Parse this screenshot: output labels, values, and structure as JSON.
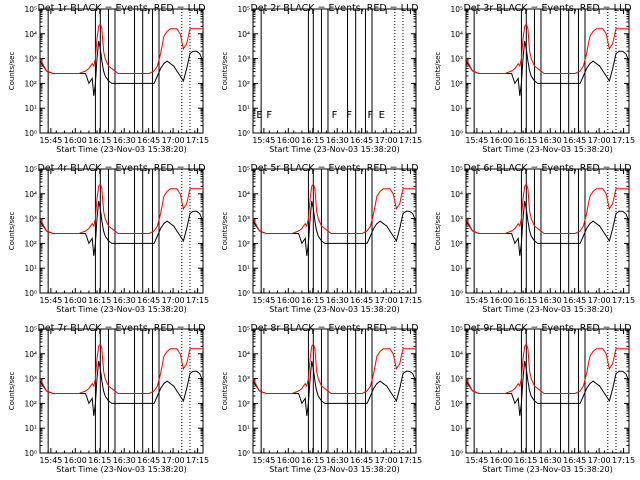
{
  "chart_data": {
    "type": "line",
    "figure": "detector count-rate grid, 3x3",
    "time_start_label": "Start Time (23-Nov-03 15:38:20)",
    "xlabel": "Start Time (23-Nov-03 15:38:20)",
    "ylabel": "Counts/sec",
    "xlim_minutes": [
      0,
      100
    ],
    "yscale": "log",
    "ylim_log10": [
      0,
      5
    ],
    "x_tick_minutes": [
      6.67,
      21.67,
      36.67,
      51.67,
      66.67,
      81.67,
      96.67
    ],
    "x_tick_labels": [
      "15:45",
      "16:00",
      "16:15",
      "16:30",
      "16:45",
      "17:00",
      "17:15"
    ],
    "y_tick_labels": [
      "10⁰",
      "10¹",
      "10²",
      "10³",
      "10⁴",
      "10⁵"
    ],
    "series_legend": [
      {
        "name": "Events",
        "color": "#000000"
      },
      {
        "name": "LLD",
        "color": "#ff0000"
      }
    ],
    "colors": {
      "events": "#000000",
      "lld": "#ff0000",
      "axes": "#000000",
      "background": "#ffffff"
    },
    "vertical_lines_solid_minutes": [
      5,
      34,
      37,
      42,
      46,
      58,
      63,
      69,
      73
    ],
    "vertical_lines_dotted_minutes": [
      87,
      92
    ],
    "flag_minutes": [
      4,
      10,
      50,
      59,
      72,
      79
    ],
    "flag_letters": [
      "E",
      "F",
      "F",
      "F",
      "F",
      "E"
    ],
    "x_minutes": [
      0,
      4,
      8,
      12,
      16,
      20,
      24,
      28,
      30,
      32,
      33,
      34,
      35,
      36,
      37,
      38,
      39,
      40,
      42,
      44,
      46,
      48,
      52,
      56,
      60,
      64,
      67,
      70,
      72,
      74,
      76,
      78,
      80,
      82,
      84,
      86,
      88,
      90,
      92,
      94,
      96,
      98,
      100
    ],
    "lld_log10": [
      3.0,
      2.5,
      2.4,
      2.4,
      2.4,
      2.4,
      2.4,
      2.5,
      2.6,
      2.8,
      2.7,
      3.0,
      3.8,
      4.3,
      4.4,
      4.2,
      3.3,
      3.0,
      2.7,
      2.6,
      2.5,
      2.4,
      2.4,
      2.4,
      2.4,
      2.4,
      2.4,
      2.5,
      2.7,
      3.2,
      3.9,
      4.1,
      4.2,
      4.2,
      4.2,
      4.0,
      3.4,
      3.6,
      4.2,
      4.2,
      4.2,
      4.2,
      4.2
    ],
    "events_log10": [
      2.9,
      2.5,
      2.4,
      2.4,
      2.4,
      2.4,
      2.4,
      2.4,
      2.0,
      2.2,
      1.5,
      2.0,
      3.0,
      3.7,
      3.4,
      2.9,
      2.5,
      2.3,
      2.1,
      2.0,
      2.0,
      2.0,
      2.0,
      2.0,
      2.0,
      2.0,
      2.0,
      2.0,
      2.3,
      2.6,
      2.8,
      2.9,
      2.8,
      2.7,
      2.5,
      2.3,
      2.1,
      2.6,
      3.2,
      3.3,
      3.3,
      3.2,
      2.9
    ],
    "panels": [
      {
        "title": "Det 1r  BLACK = Events, RED = LLD",
        "has_data": true
      },
      {
        "title": "Det 2r  BLACK = Events, RED = LLD",
        "has_data": false
      },
      {
        "title": "Det 3r  BLACK = Events, RED = LLD",
        "has_data": true
      },
      {
        "title": "Det 4r  BLACK = Events, RED = LLD",
        "has_data": true
      },
      {
        "title": "Det 5r  BLACK = Events, RED = LLD",
        "has_data": true
      },
      {
        "title": "Det 6r  BLACK = Events, RED = LLD",
        "has_data": true
      },
      {
        "title": "Det 7r  BLACK = Events, RED = LLD",
        "has_data": true
      },
      {
        "title": "Det 8r  BLACK = Events, RED = LLD",
        "has_data": true
      },
      {
        "title": "Det 9r  BLACK = Events, RED = LLD",
        "has_data": true
      }
    ]
  }
}
